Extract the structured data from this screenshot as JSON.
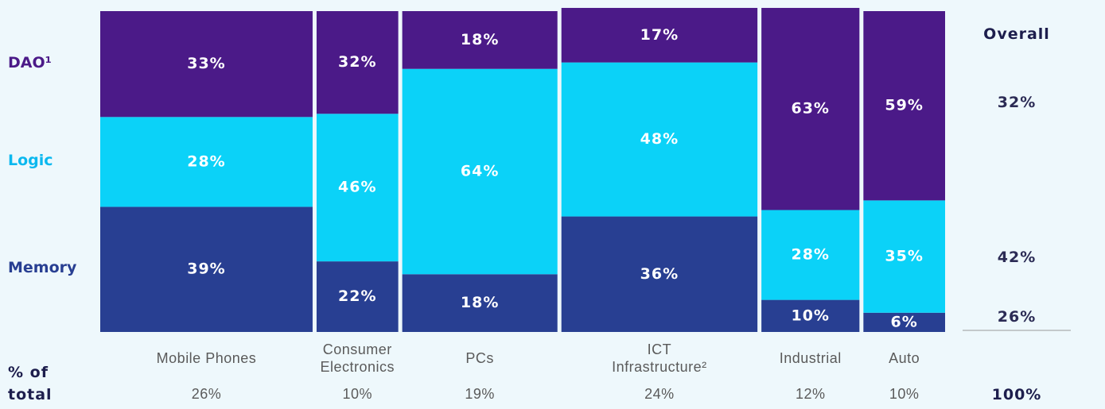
{
  "chart_data": {
    "type": "mekko",
    "categories": [
      "Mobile Phones",
      "Consumer Electronics",
      "PCs",
      "ICT Infrastructure²",
      "Industrial",
      "Auto"
    ],
    "widths": [
      26,
      10,
      19,
      24,
      12,
      10
    ],
    "width_labels": [
      "26%",
      "10%",
      "19%",
      "24%",
      "12%",
      "10%"
    ],
    "x_label": "% of total",
    "ylim": [
      0,
      100
    ],
    "series": [
      {
        "name": "Memory",
        "color": "#283f92",
        "values": [
          39,
          22,
          18,
          36,
          10,
          6
        ],
        "value_labels": [
          "39%",
          "22%",
          "18%",
          "36%",
          "10%",
          "6%"
        ]
      },
      {
        "name": "Logic",
        "color": "#0bd2f8",
        "values": [
          28,
          46,
          64,
          48,
          28,
          35
        ],
        "value_labels": [
          "28%",
          "46%",
          "64%",
          "48%",
          "28%",
          "35%"
        ]
      },
      {
        "name": "DAO¹",
        "color": "#4b1a88",
        "values": [
          33,
          32,
          18,
          17,
          63,
          59
        ],
        "value_labels": [
          "33%",
          "32%",
          "18%",
          "17%",
          "63%",
          "59%"
        ]
      }
    ],
    "overall": {
      "title": "Overall",
      "values": [
        26,
        42,
        32
      ],
      "value_labels": [
        "26%",
        "42%",
        "32%"
      ],
      "total": 100,
      "total_label": "100%"
    }
  }
}
